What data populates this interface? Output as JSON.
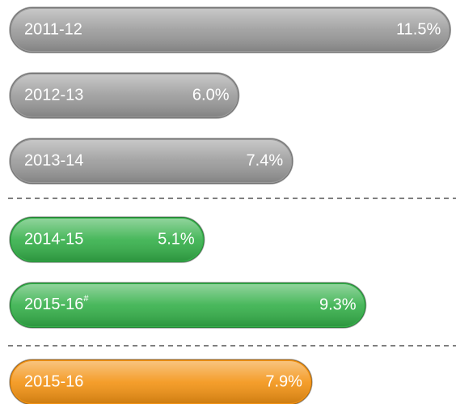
{
  "chart_data": {
    "type": "bar",
    "orientation": "horizontal",
    "categories": [
      "2011-12",
      "2012-13",
      "2013-14",
      "2014-15",
      "2015-16#",
      "2015-16"
    ],
    "values": [
      11.5,
      6.0,
      7.4,
      5.1,
      9.3,
      7.9
    ],
    "value_labels": [
      "11.5%",
      "6.0%",
      "7.4%",
      "5.1%",
      "9.3%",
      "7.9%"
    ],
    "colors": [
      "#9a9a9a",
      "#9a9a9a",
      "#9a9a9a",
      "#35b04a",
      "#35b04a",
      "#f39314"
    ],
    "xlim": [
      0,
      11.6
    ]
  }
}
